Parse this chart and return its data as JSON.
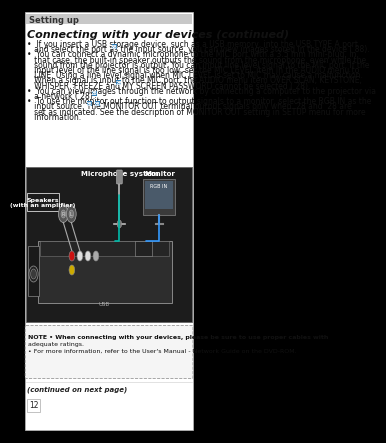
{
  "bg_color": "#000000",
  "page_bg": "#ffffff",
  "header_bg": "#c8c8c8",
  "header_text": "Setting up",
  "header_text_color": "#333333",
  "title_text": "Connecting with your devices (continued)",
  "title_color": "#111111",
  "body_text_color": "#111111",
  "body_fontsize": 5.5,
  "title_fontsize": 8.0,
  "header_fontsize": 6.0,
  "body_lines": [
    "•  If you insert a USB storage device, such as a USB memory, into the USB TYPE A port",
    "   and select the port as the input source, you can view images stored in the device ( 88).",
    "•  You can connect a dynamic microphone to the MIC port with a 3.5 mm mini-plug. In",
    "   that case, the built-in speaker outputs the sound from the microphone, even while the",
    "   sound from the projector is output. You can input line level signal to the MIC port. If the",
    "   input level of the line signal is too low, set the MIC LEVEL item in the AUDIO menu to",
    "   LINE. Using a line level signal when MIC LEVEL is set to MIC may cause a malfunction.",
    "   When a signal is input to the MIC port, the AUDIO menu item OVER SCAN, KEYSTONE,",
    "   WHISPER, FREEZE and MY SCREEN PASSWORD cannot be selected ( 28).",
    "•  You can view images through the network by connecting a computer to the projector via",
    "   a network ( 28).",
    "•  To use the monitor out function to output signals to a monitor, select the RGB IN as the",
    "   input source. The MONITOR OUT terminal output signals only when  28 and  28 are",
    "   set as indicated. See the description of MONITOR OUT setting in SETUP menu for more",
    "   information."
  ],
  "note_lines": [
    "NOTE • When connecting with your devices, please be sure to use proper cables with",
    "adequate ratings.",
    "• For more information, refer to the User's Manual - Network Guide on the DVD-ROM."
  ],
  "footer_text": "(continued on next page)",
  "page_number": "12",
  "diag_label_speakers": "Speakers\n(with an amplifier)",
  "diag_label_mic": "Microphone system",
  "diag_label_monitor": "Monitor",
  "diag_label_rgb": "RGB IN",
  "blue_box_color": "#2a7ab5",
  "note_box_color": "#e8e8e8",
  "diagram_bg": "#1c1c1c",
  "diagram_border": "#666666"
}
